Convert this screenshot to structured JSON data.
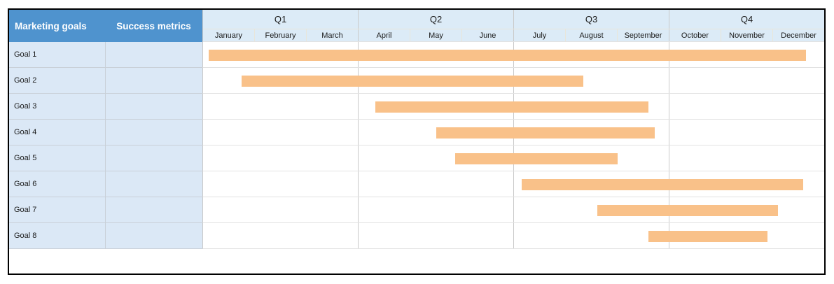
{
  "table": {
    "goals_header": "Marketing goals",
    "metrics_header": "Success metrics",
    "quarters": [
      {
        "label": "Q1",
        "months": [
          "January",
          "February",
          "March"
        ]
      },
      {
        "label": "Q2",
        "months": [
          "April",
          "May",
          "June"
        ]
      },
      {
        "label": "Q3",
        "months": [
          "July",
          "August",
          "September"
        ]
      },
      {
        "label": "Q4",
        "months": [
          "October",
          "November",
          "December"
        ]
      }
    ],
    "rows": [
      {
        "goal": "Goal 1",
        "metric": ""
      },
      {
        "goal": "Goal 2",
        "metric": ""
      },
      {
        "goal": "Goal 3",
        "metric": ""
      },
      {
        "goal": "Goal 4",
        "metric": ""
      },
      {
        "goal": "Goal 5",
        "metric": ""
      },
      {
        "goal": "Goal 6",
        "metric": ""
      },
      {
        "goal": "Goal 7",
        "metric": ""
      },
      {
        "goal": "Goal 8",
        "metric": ""
      }
    ]
  },
  "chart_data": {
    "type": "bar",
    "variant": "gantt-timeline",
    "title": "",
    "categories": [
      "Goal 1",
      "Goal 2",
      "Goal 3",
      "Goal 4",
      "Goal 5",
      "Goal 6",
      "Goal 7",
      "Goal 8"
    ],
    "x_axis": {
      "quarters": [
        "Q1",
        "Q2",
        "Q3",
        "Q4"
      ],
      "months": [
        "January",
        "February",
        "March",
        "April",
        "May",
        "June",
        "July",
        "August",
        "September",
        "October",
        "November",
        "December"
      ],
      "unit": "month index (0 = start of January, 12 = end of December)",
      "range": [
        0,
        12
      ]
    },
    "bars": [
      {
        "category": "Goal 1",
        "start_month": 0.11,
        "end_month": 11.65
      },
      {
        "category": "Goal 2",
        "start_month": 0.75,
        "end_month": 7.35
      },
      {
        "category": "Goal 3",
        "start_month": 3.33,
        "end_month": 8.6
      },
      {
        "category": "Goal 4",
        "start_month": 4.51,
        "end_month": 8.72
      },
      {
        "category": "Goal 5",
        "start_month": 4.87,
        "end_month": 8.01
      },
      {
        "category": "Goal 6",
        "start_month": 6.16,
        "end_month": 11.6
      },
      {
        "category": "Goal 7",
        "start_month": 7.62,
        "end_month": 11.11
      },
      {
        "category": "Goal 8",
        "start_month": 8.6,
        "end_month": 10.91
      }
    ],
    "bar_color": "#f9c189",
    "grid": "vertical lines at quarter boundaries only",
    "legend": false
  },
  "colors": {
    "background": "#ffffff",
    "header_blue": "#4f93ce",
    "header_text": "#ffffff",
    "timeline_header_blue": "#dcebf7",
    "label_cell_blue": "#dbe8f6",
    "bar_orange": "#f9c189",
    "quarter_line": "#c9c9c9",
    "row_line": "#e2e2e2",
    "label_row_line": "#c9d0d8",
    "month_divider": "#e9e6da",
    "table_border": "#000000"
  }
}
